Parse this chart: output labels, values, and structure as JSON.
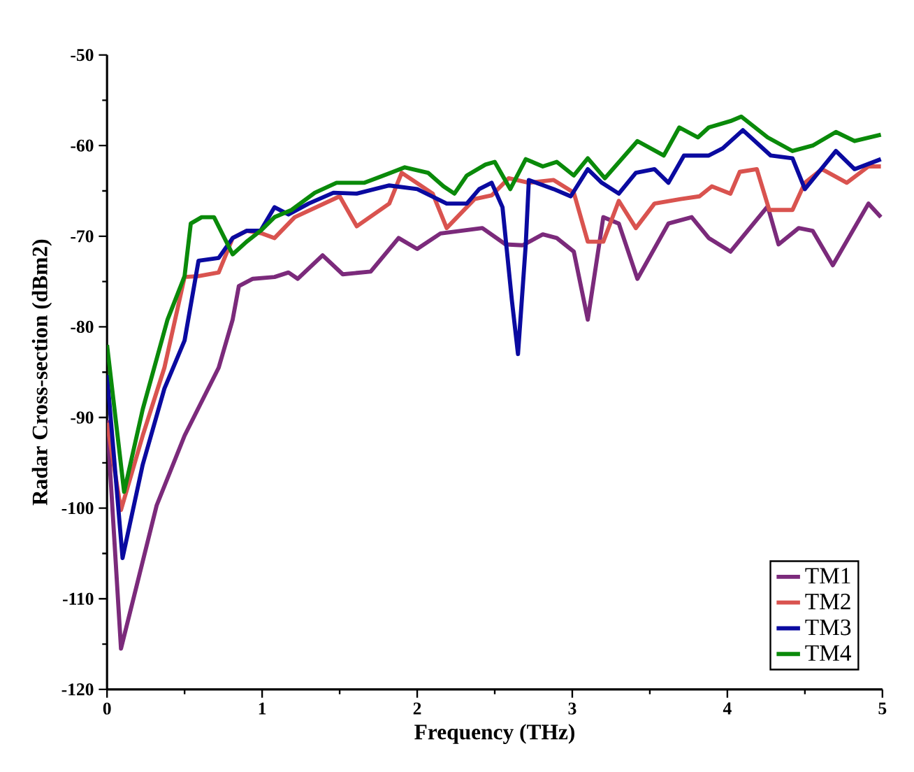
{
  "chart_data": {
    "type": "line",
    "xlabel": "Frequency (THz)",
    "ylabel": "Radar Cross-section (dBm2)",
    "xlim": [
      0,
      5
    ],
    "ylim": [
      -120,
      -50
    ],
    "xticks": [
      0,
      1,
      2,
      3,
      4,
      5
    ],
    "yticks": [
      -120,
      -110,
      -100,
      -90,
      -80,
      -70,
      -60,
      -50
    ],
    "grid": false,
    "legend": "bottom right",
    "marker": "none",
    "line_style": "solid",
    "series": [
      {
        "name": "TM1",
        "color": "#7b2a7b",
        "x": [
          0,
          0.09,
          0.32,
          0.5,
          0.72,
          0.81,
          0.85,
          0.94,
          1.08,
          1.17,
          1.23,
          1.39,
          1.52,
          1.7,
          1.88,
          2.0,
          2.15,
          2.42,
          2.57,
          2.68,
          2.81,
          2.9,
          3.01,
          3.1,
          3.2,
          3.3,
          3.42,
          3.62,
          3.77,
          3.88,
          4.02,
          4.26,
          4.33,
          4.46,
          4.55,
          4.68,
          4.91,
          4.99
        ],
        "values": [
          -90.3,
          -115.5,
          -99.7,
          -92,
          -84.5,
          -79.2,
          -75.5,
          -74.7,
          -74.5,
          -74,
          -74.7,
          -72.1,
          -74.2,
          -73.9,
          -70.2,
          -71.4,
          -69.7,
          -69.1,
          -70.9,
          -71,
          -69.8,
          -70.2,
          -71.7,
          -79.2,
          -67.9,
          -68.6,
          -74.7,
          -68.6,
          -67.9,
          -70.2,
          -71.7,
          -66.7,
          -70.9,
          -69.1,
          -69.4,
          -73.2,
          -66.4,
          -67.9
        ]
      },
      {
        "name": "TM2",
        "color": "#d9534f",
        "x": [
          0,
          0.09,
          0.23,
          0.37,
          0.5,
          0.59,
          0.72,
          0.81,
          0.9,
          1.0,
          1.08,
          1.21,
          1.5,
          1.61,
          1.82,
          1.9,
          2.1,
          2.19,
          2.37,
          2.48,
          2.59,
          2.72,
          2.88,
          3.01,
          3.1,
          3.2,
          3.3,
          3.41,
          3.53,
          3.7,
          3.82,
          3.9,
          4.02,
          4.08,
          4.19,
          4.27,
          4.42,
          4.5,
          4.61,
          4.77,
          4.91,
          4.99
        ],
        "values": [
          -90.6,
          -100.2,
          -92,
          -84.5,
          -74.5,
          -74.4,
          -74,
          -70.2,
          -69.4,
          -69.7,
          -70.2,
          -67.9,
          -65.6,
          -68.9,
          -66.4,
          -63,
          -65.3,
          -69.1,
          -65.9,
          -65.5,
          -63.6,
          -64.1,
          -63.8,
          -65.2,
          -70.6,
          -70.6,
          -66.1,
          -69.1,
          -66.4,
          -65.9,
          -65.6,
          -64.5,
          -65.3,
          -62.9,
          -62.6,
          -67.1,
          -67.1,
          -64.1,
          -62.6,
          -64.1,
          -62.3,
          -62.3
        ]
      },
      {
        "name": "TM3",
        "color": "#0a0aa0",
        "x": [
          0,
          0.1,
          0.23,
          0.37,
          0.5,
          0.59,
          0.72,
          0.81,
          0.9,
          0.99,
          1.08,
          1.17,
          1.3,
          1.46,
          1.61,
          1.82,
          2.0,
          2.19,
          2.32,
          2.4,
          2.48,
          2.55,
          2.61,
          2.65,
          2.7,
          2.72,
          2.88,
          2.99,
          3.1,
          3.19,
          3.3,
          3.41,
          3.53,
          3.62,
          3.72,
          3.88,
          3.97,
          4.1,
          4.28,
          4.42,
          4.5,
          4.7,
          4.82,
          4.99
        ],
        "values": [
          -85.3,
          -105.5,
          -95.2,
          -86.8,
          -81.5,
          -72.7,
          -72.4,
          -70.2,
          -69.4,
          -69.4,
          -66.8,
          -67.6,
          -66.4,
          -65.2,
          -65.3,
          -64.4,
          -64.8,
          -66.4,
          -66.4,
          -64.8,
          -64.1,
          -66.8,
          -77,
          -83,
          -70.9,
          -63.8,
          -64.8,
          -65.6,
          -62.6,
          -64.1,
          -65.3,
          -63,
          -62.6,
          -64.1,
          -61.1,
          -61.1,
          -60.3,
          -58.3,
          -61.1,
          -61.4,
          -64.8,
          -60.6,
          -62.6,
          -61.5
        ]
      },
      {
        "name": "TM4",
        "color": "#0a8a0a",
        "x": [
          0,
          0.11,
          0.23,
          0.39,
          0.5,
          0.54,
          0.61,
          0.69,
          0.81,
          0.9,
          0.99,
          1.08,
          1.19,
          1.34,
          1.48,
          1.66,
          1.83,
          1.92,
          2.07,
          2.17,
          2.24,
          2.32,
          2.44,
          2.5,
          2.6,
          2.7,
          2.81,
          2.9,
          3.01,
          3.1,
          3.21,
          3.42,
          3.59,
          3.69,
          3.81,
          3.88,
          4.02,
          4.09,
          4.26,
          4.42,
          4.55,
          4.7,
          4.82,
          4.99
        ],
        "values": [
          -82,
          -98.2,
          -89.1,
          -79.2,
          -74.4,
          -68.6,
          -67.9,
          -67.9,
          -72,
          -70.6,
          -69.4,
          -67.9,
          -67.1,
          -65.2,
          -64.1,
          -64.1,
          -63,
          -62.4,
          -63,
          -64.5,
          -65.3,
          -63.3,
          -62.1,
          -61.8,
          -64.8,
          -61.5,
          -62.3,
          -61.8,
          -63.3,
          -61.4,
          -63.6,
          -59.5,
          -61.1,
          -58,
          -59.1,
          -58,
          -57.3,
          -56.8,
          -59.1,
          -60.6,
          -60,
          -58.5,
          -59.5,
          -58.8
        ]
      }
    ]
  }
}
